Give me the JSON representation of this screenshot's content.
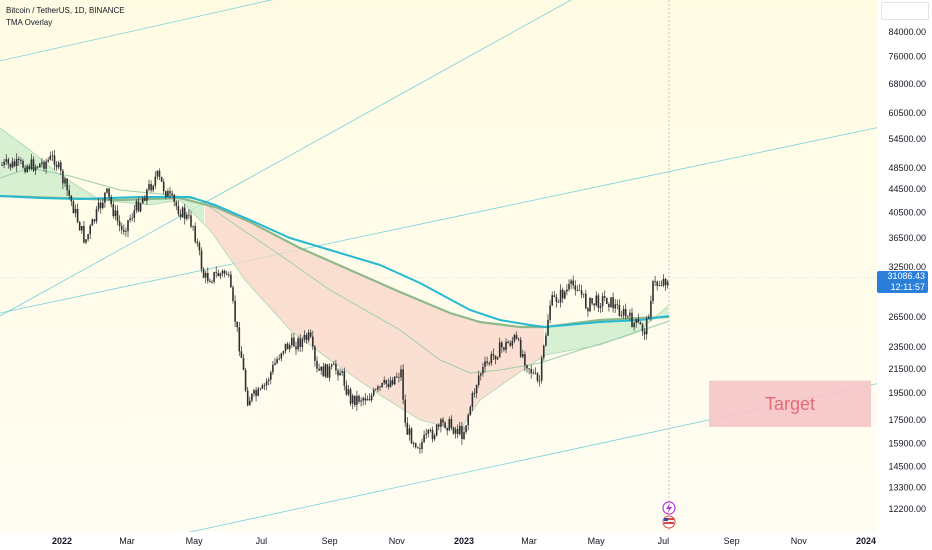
{
  "header": {
    "symbol_line": "Bitcoin / TetherUS, 1D, BINANCE",
    "indicator": "TMA Overlay"
  },
  "price_badge": {
    "price": "31086.43",
    "countdown": "12:11:57"
  },
  "target_label": "Target",
  "colors": {
    "bg_top": "#fffbe3",
    "bg_bottom": "#fffdf3",
    "candle": "#2f2f2f",
    "ma_fast": "#9ccfac",
    "ma_mid": "#7fbf93",
    "ma_slow": "#8fb88a",
    "ma_ribbon": "#25b9d2",
    "band_bull": "#cdeccc",
    "band_bear": "#f8d6c8",
    "target_fill": "#f6c4c6",
    "target_text": "#e26d79",
    "trendline": "#56c6d8",
    "badge": "#2a7fd9"
  },
  "icons": [
    "lightning-icon",
    "us-flag-icon"
  ],
  "chart_data": {
    "type": "candlestick",
    "x_ticks": [
      "2022",
      "Mar",
      "May",
      "Jul",
      "Sep",
      "Nov",
      "2023",
      "Mar",
      "May",
      "Jul",
      "Sep",
      "Nov",
      "2024"
    ],
    "y_ticks": [
      "84000.00",
      "76000.00",
      "68000.00",
      "60500.00",
      "54500.00",
      "48500.00",
      "44500.00",
      "40500.00",
      "36500.00",
      "32500.00",
      "26500.00",
      "23500.00",
      "21500.00",
      "19500.00",
      "17500.00",
      "15900.00",
      "14500.00",
      "13300.00",
      "12200.00"
    ],
    "y_scale": "log",
    "last_price": 31086.43,
    "closes": [
      {
        "x": "2021-12-10",
        "y": 49000
      },
      {
        "x": "2021-12-25",
        "y": 50500
      },
      {
        "x": "2022-01-10",
        "y": 42000
      },
      {
        "x": "2022-01-22",
        "y": 36000
      },
      {
        "x": "2022-02-10",
        "y": 44000
      },
      {
        "x": "2022-02-24",
        "y": 37500
      },
      {
        "x": "2022-03-28",
        "y": 47000
      },
      {
        "x": "2022-04-10",
        "y": 42500
      },
      {
        "x": "2022-04-30",
        "y": 38500
      },
      {
        "x": "2022-05-10",
        "y": 31000
      },
      {
        "x": "2022-05-31",
        "y": 31800
      },
      {
        "x": "2022-06-13",
        "y": 22500
      },
      {
        "x": "2022-06-18",
        "y": 19000
      },
      {
        "x": "2022-07-01",
        "y": 19500
      },
      {
        "x": "2022-07-20",
        "y": 23400
      },
      {
        "x": "2022-08-14",
        "y": 24400
      },
      {
        "x": "2022-08-20",
        "y": 21200
      },
      {
        "x": "2022-09-10",
        "y": 21500
      },
      {
        "x": "2022-09-20",
        "y": 19000
      },
      {
        "x": "2022-10-10",
        "y": 19300
      },
      {
        "x": "2022-11-05",
        "y": 21300
      },
      {
        "x": "2022-11-09",
        "y": 16800
      },
      {
        "x": "2022-11-21",
        "y": 15800
      },
      {
        "x": "2022-12-15",
        "y": 17300
      },
      {
        "x": "2022-12-31",
        "y": 16550
      },
      {
        "x": "2023-01-14",
        "y": 20900
      },
      {
        "x": "2023-01-31",
        "y": 23100
      },
      {
        "x": "2023-02-16",
        "y": 24300
      },
      {
        "x": "2023-03-10",
        "y": 20100
      },
      {
        "x": "2023-03-20",
        "y": 28000
      },
      {
        "x": "2023-04-13",
        "y": 30400
      },
      {
        "x": "2023-04-22",
        "y": 27800
      },
      {
        "x": "2023-05-10",
        "y": 28600
      },
      {
        "x": "2023-06-05",
        "y": 25800
      },
      {
        "x": "2023-06-15",
        "y": 25100
      },
      {
        "x": "2023-06-21",
        "y": 30000
      },
      {
        "x": "2023-07-06",
        "y": 31086
      }
    ],
    "target_zone": {
      "label": "Target",
      "y_low": 17000,
      "y_high": 20500,
      "x_start": "2023-08-10",
      "x_end": "2023-11-30"
    }
  }
}
